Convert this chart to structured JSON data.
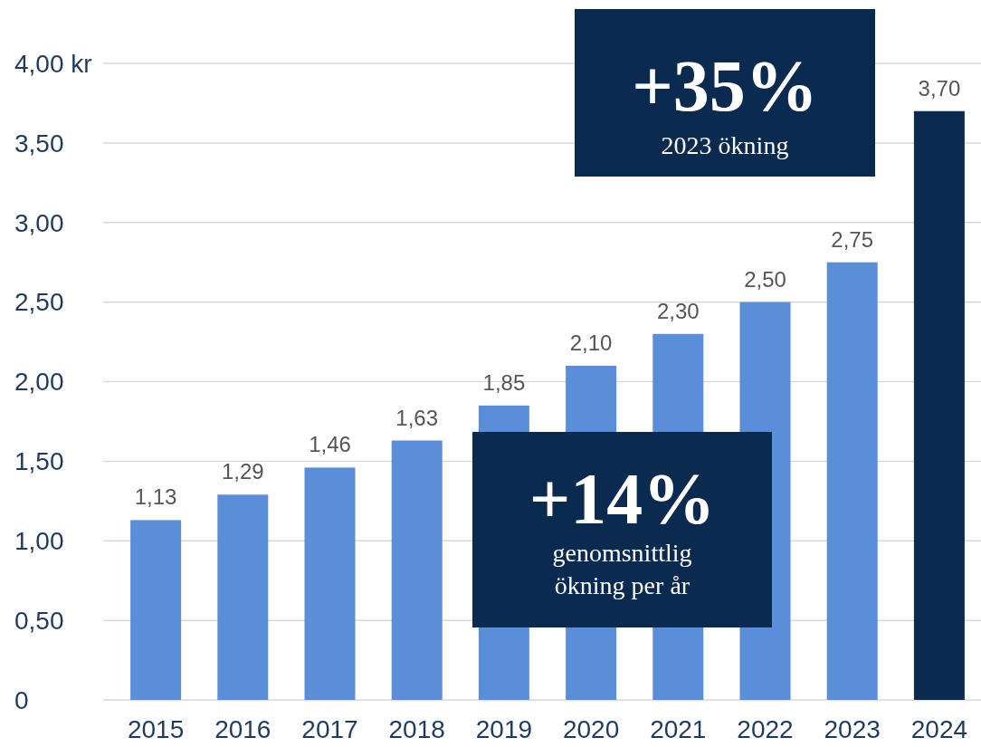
{
  "chart_data": {
    "type": "bar",
    "categories": [
      "2015",
      "2016",
      "2017",
      "2018",
      "2019",
      "2020",
      "2021",
      "2022",
      "2023",
      "2024"
    ],
    "values": [
      1.13,
      1.29,
      1.46,
      1.63,
      1.85,
      2.1,
      2.3,
      2.5,
      2.75,
      3.7
    ],
    "colors": [
      "#5b8ed8",
      "#5b8ed8",
      "#5b8ed8",
      "#5b8ed8",
      "#5b8ed8",
      "#5b8ed8",
      "#5b8ed8",
      "#5b8ed8",
      "#5b8ed8",
      "#0b2a4f"
    ],
    "value_labels": [
      "1,13",
      "1,29",
      "1,46",
      "1,63",
      "1,85",
      "2,10",
      "2,30",
      "2,50",
      "2,75",
      "3,70"
    ],
    "ylim": [
      0,
      4
    ],
    "yticks": [
      {
        "value": 0,
        "label": "0"
      },
      {
        "value": 0.5,
        "label": "0,50"
      },
      {
        "value": 1,
        "label": "1,00"
      },
      {
        "value": 1.5,
        "label": "1,50"
      },
      {
        "value": 2,
        "label": "2,00"
      },
      {
        "value": 2.5,
        "label": "2,50"
      },
      {
        "value": 3,
        "label": "3,00"
      },
      {
        "value": 3.5,
        "label": "3,50"
      },
      {
        "value": 4,
        "label": "4,00 kr"
      }
    ],
    "grid": "y",
    "annotations": [
      "+35%",
      "2023 ökning",
      "+14%",
      "genomsnittlig ökning per år"
    ]
  }
}
